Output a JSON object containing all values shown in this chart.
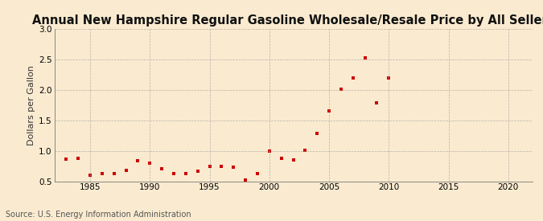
{
  "title": "Annual New Hampshire Regular Gasoline Wholesale/Resale Price by All Sellers",
  "ylabel": "Dollars per Gallon",
  "source": "Source: U.S. Energy Information Administration",
  "background_color": "#faebd0",
  "plot_bg_color": "#faebd0",
  "marker_color": "#cc0000",
  "years": [
    1983,
    1984,
    1985,
    1986,
    1987,
    1988,
    1989,
    1990,
    1991,
    1992,
    1993,
    1994,
    1995,
    1996,
    1997,
    1998,
    1999,
    2000,
    2001,
    2002,
    2003,
    2004,
    2005,
    2006,
    2007,
    2008,
    2009,
    2010
  ],
  "values": [
    0.86,
    0.88,
    0.6,
    0.63,
    0.63,
    0.68,
    0.84,
    0.8,
    0.7,
    0.63,
    0.63,
    0.67,
    0.75,
    0.75,
    0.73,
    0.52,
    0.62,
    0.99,
    0.87,
    0.85,
    1.01,
    1.28,
    1.65,
    2.01,
    2.19,
    2.52,
    1.79,
    2.19
  ],
  "xlim": [
    1982,
    2022
  ],
  "ylim": [
    0.5,
    3.0
  ],
  "xticks": [
    1985,
    1990,
    1995,
    2000,
    2005,
    2010,
    2015,
    2020
  ],
  "yticks": [
    0.5,
    1.0,
    1.5,
    2.0,
    2.5,
    3.0
  ],
  "title_fontsize": 10.5,
  "label_fontsize": 8,
  "tick_fontsize": 7.5,
  "source_fontsize": 7
}
